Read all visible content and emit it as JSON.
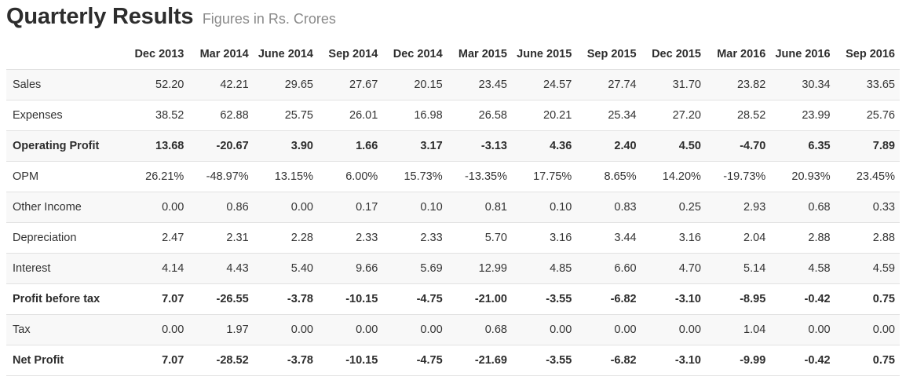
{
  "chart_data": {
    "type": "table",
    "title": "Quarterly Results",
    "subtitle": "Figures in Rs. Crores",
    "columns": [
      "Dec 2013",
      "Mar 2014",
      "June 2014",
      "Sep 2014",
      "Dec 2014",
      "Mar 2015",
      "June 2015",
      "Sep 2015",
      "Dec 2015",
      "Mar 2016",
      "June 2016",
      "Sep 2016"
    ],
    "rows": [
      {
        "label": "Sales",
        "bold": false,
        "values": [
          "52.20",
          "42.21",
          "29.65",
          "27.67",
          "20.15",
          "23.45",
          "24.57",
          "27.74",
          "31.70",
          "23.82",
          "30.34",
          "33.65"
        ]
      },
      {
        "label": "Expenses",
        "bold": false,
        "values": [
          "38.52",
          "62.88",
          "25.75",
          "26.01",
          "16.98",
          "26.58",
          "20.21",
          "25.34",
          "27.20",
          "28.52",
          "23.99",
          "25.76"
        ]
      },
      {
        "label": "Operating Profit",
        "bold": true,
        "values": [
          "13.68",
          "-20.67",
          "3.90",
          "1.66",
          "3.17",
          "-3.13",
          "4.36",
          "2.40",
          "4.50",
          "-4.70",
          "6.35",
          "7.89"
        ]
      },
      {
        "label": "OPM",
        "bold": false,
        "values": [
          "26.21%",
          "-48.97%",
          "13.15%",
          "6.00%",
          "15.73%",
          "-13.35%",
          "17.75%",
          "8.65%",
          "14.20%",
          "-19.73%",
          "20.93%",
          "23.45%"
        ]
      },
      {
        "label": "Other Income",
        "bold": false,
        "values": [
          "0.00",
          "0.86",
          "0.00",
          "0.17",
          "0.10",
          "0.81",
          "0.10",
          "0.83",
          "0.25",
          "2.93",
          "0.68",
          "0.33"
        ]
      },
      {
        "label": "Depreciation",
        "bold": false,
        "values": [
          "2.47",
          "2.31",
          "2.28",
          "2.33",
          "2.33",
          "5.70",
          "3.16",
          "3.44",
          "3.16",
          "2.04",
          "2.88",
          "2.88"
        ]
      },
      {
        "label": "Interest",
        "bold": false,
        "values": [
          "4.14",
          "4.43",
          "5.40",
          "9.66",
          "5.69",
          "12.99",
          "4.85",
          "6.60",
          "4.70",
          "5.14",
          "4.58",
          "4.59"
        ]
      },
      {
        "label": "Profit before tax",
        "bold": true,
        "values": [
          "7.07",
          "-26.55",
          "-3.78",
          "-10.15",
          "-4.75",
          "-21.00",
          "-3.55",
          "-6.82",
          "-3.10",
          "-8.95",
          "-0.42",
          "0.75"
        ]
      },
      {
        "label": "Tax",
        "bold": false,
        "values": [
          "0.00",
          "1.97",
          "0.00",
          "0.00",
          "0.00",
          "0.68",
          "0.00",
          "0.00",
          "0.00",
          "1.04",
          "0.00",
          "0.00"
        ]
      },
      {
        "label": "Net Profit",
        "bold": true,
        "values": [
          "7.07",
          "-28.52",
          "-3.78",
          "-10.15",
          "-4.75",
          "-21.69",
          "-3.55",
          "-6.82",
          "-3.10",
          "-9.99",
          "-0.42",
          "0.75"
        ]
      }
    ],
    "layout": {
      "legend": "none",
      "grid": "horizontal-row-dividers",
      "striped_rows": true,
      "bold_rows": [
        "Operating Profit",
        "Profit before tax",
        "Net Profit"
      ]
    },
    "colors": {
      "title_text": "#2d2d2d",
      "subtitle_text": "#8a8a8a",
      "body_text": "#333333",
      "row_stripe": "#f8f8f8",
      "row_divider": "#e2e2e2"
    }
  }
}
